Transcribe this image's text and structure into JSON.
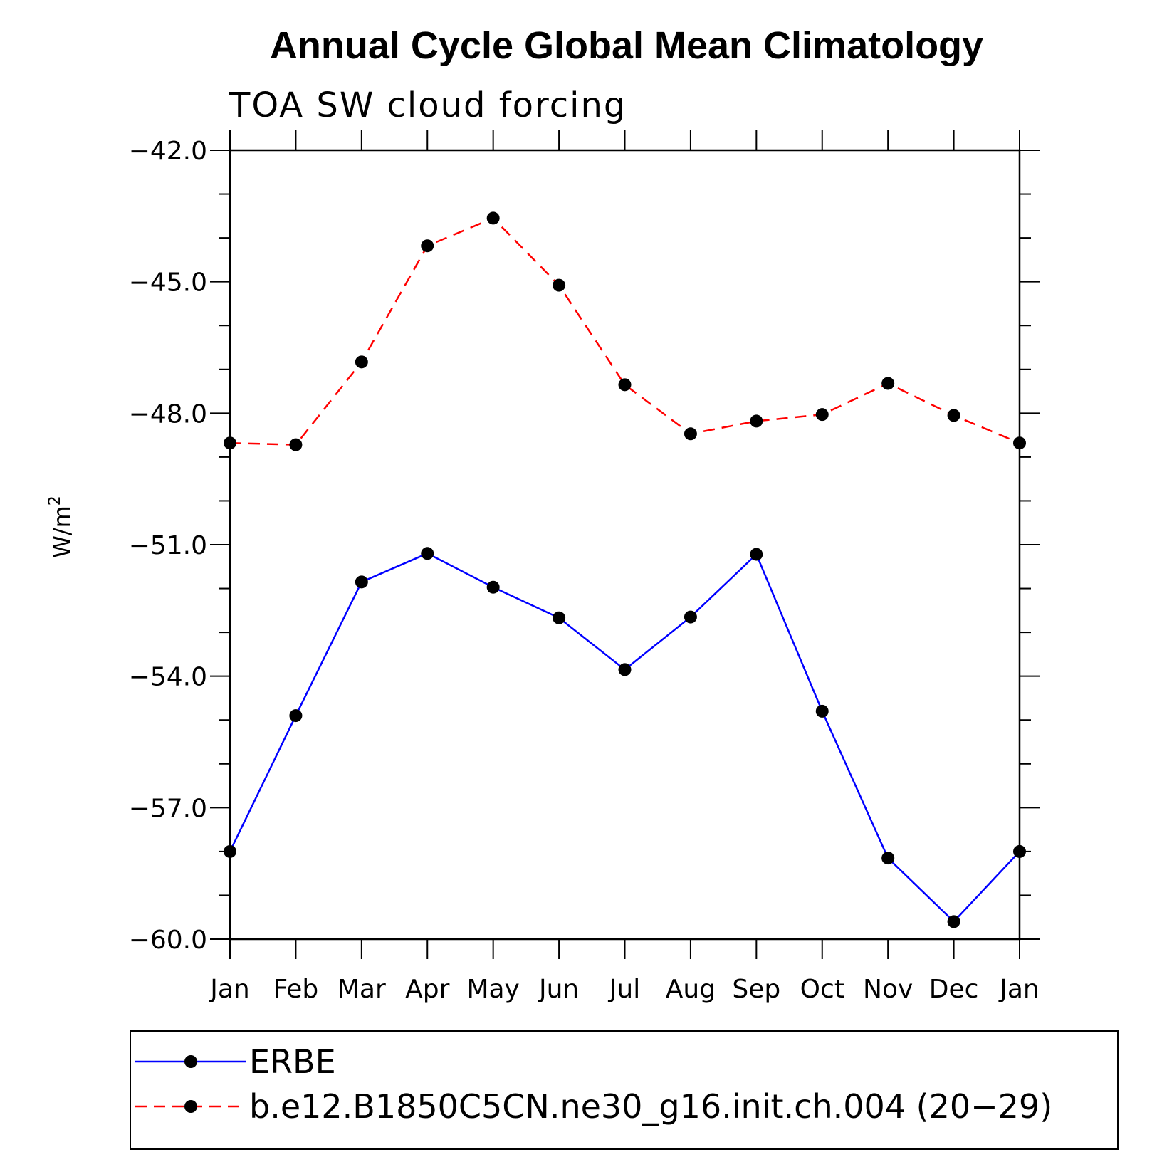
{
  "chart_data": {
    "type": "line",
    "title": "Annual Cycle Global Mean Climatology",
    "subtitle": "TOA SW cloud forcing",
    "xlabel": "",
    "ylabel": "W/m",
    "ylabel_superscript": "2",
    "categories": [
      "Jan",
      "Feb",
      "Mar",
      "Apr",
      "May",
      "Jun",
      "Jul",
      "Aug",
      "Sep",
      "Oct",
      "Nov",
      "Dec",
      "Jan"
    ],
    "ylim": [
      -60.0,
      -42.0
    ],
    "yticks": [
      -42.0,
      -45.0,
      -48.0,
      -51.0,
      -54.0,
      -57.0,
      -60.0
    ],
    "ytick_labels": [
      "−42.0",
      "−45.0",
      "−48.0",
      "−51.0",
      "−54.0",
      "−57.0",
      "−60.0"
    ],
    "grid": false,
    "legend_position": "bottom",
    "series": [
      {
        "name": "ERBE",
        "color": "#0000ff",
        "line_style": "solid",
        "marker": "filled-circle",
        "values": [
          -58.0,
          -54.9,
          -51.85,
          -51.2,
          -51.97,
          -52.67,
          -53.85,
          -52.65,
          -51.22,
          -54.8,
          -58.15,
          -59.6,
          -58.0
        ]
      },
      {
        "name": "b.e12.B1850C5CN.ne30_g16.init.ch.004 (20−29)",
        "color": "#ff0000",
        "line_style": "dashed",
        "marker": "filled-circle",
        "values": [
          -48.68,
          -48.72,
          -46.83,
          -44.18,
          -43.55,
          -45.08,
          -47.35,
          -48.47,
          -48.18,
          -48.03,
          -47.32,
          -48.05,
          -48.68
        ]
      }
    ]
  }
}
